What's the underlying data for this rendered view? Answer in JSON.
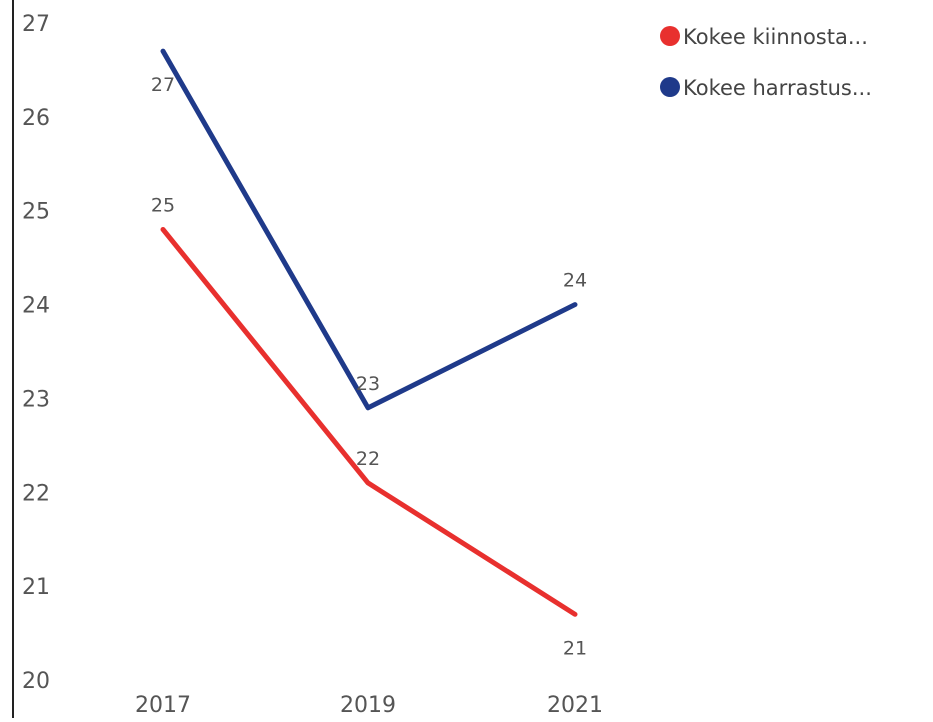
{
  "chart_data": {
    "type": "line",
    "title": "",
    "xlabel": "",
    "ylabel": "",
    "categories": [
      "2017",
      "2019",
      "2021"
    ],
    "ylim": [
      20,
      27
    ],
    "yticks": [
      "20",
      "21",
      "22",
      "23",
      "24",
      "25",
      "26",
      "27"
    ],
    "grid": false,
    "legend_position": "top-right",
    "series": [
      {
        "name": "Kokee kiinnosta...",
        "color": "#e8302e",
        "values": [
          24.8,
          22.1,
          20.7
        ],
        "labels": [
          "25",
          "22",
          "21"
        ],
        "label_placement": [
          "above",
          "above",
          "below"
        ]
      },
      {
        "name": "Kokee harrastus...",
        "color": "#1f3a8a",
        "values": [
          26.7,
          22.9,
          24.0
        ],
        "labels": [
          "27",
          "23",
          "24"
        ],
        "label_placement": [
          "below",
          "above",
          "above"
        ]
      }
    ]
  }
}
